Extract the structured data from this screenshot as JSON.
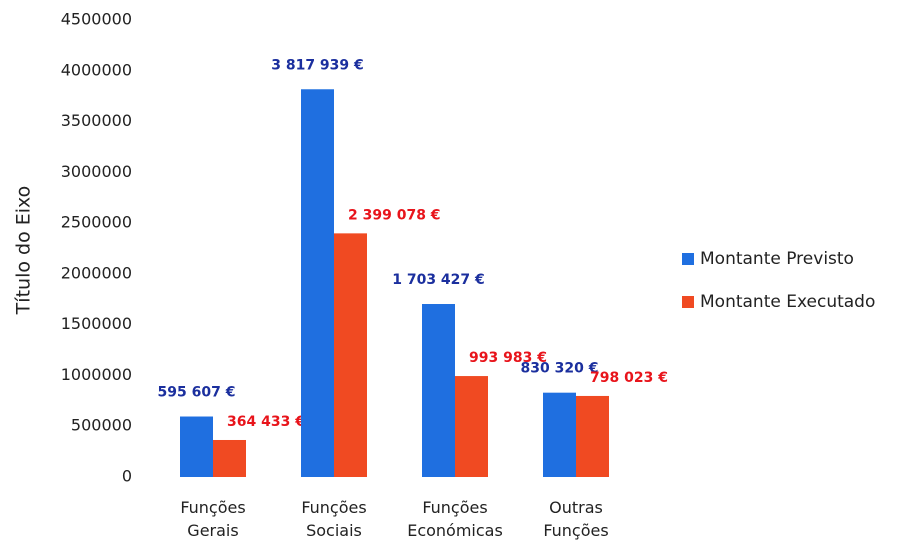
{
  "chart_data": {
    "type": "bar",
    "y_label": "Título do Eixo",
    "categories": [
      "Funções Gerais",
      "Funções Sociais",
      "Funções Económicas",
      "Outras Funções"
    ],
    "series": [
      {
        "name": "Montante Previsto",
        "color": "#1f6fe0",
        "label_color": "#1b2f9e",
        "values": [
          595607,
          3817939,
          1703427,
          830320
        ],
        "value_labels": [
          "595 607 €",
          "3 817 939 €",
          "1 703 427 €",
          "830 320 €"
        ]
      },
      {
        "name": "Montante Executado",
        "color": "#f04a22",
        "label_color": "#e8141b",
        "values": [
          364433,
          2399078,
          993983,
          798023
        ],
        "value_labels": [
          "364 433 €",
          "2 399 078 €",
          "993 983 €",
          "798 023 €"
        ]
      }
    ],
    "ylim": [
      0,
      4500000
    ],
    "yticks": [
      0,
      500000,
      1000000,
      1500000,
      2000000,
      2500000,
      3000000,
      3500000,
      4000000,
      4500000
    ],
    "legend": "right"
  }
}
